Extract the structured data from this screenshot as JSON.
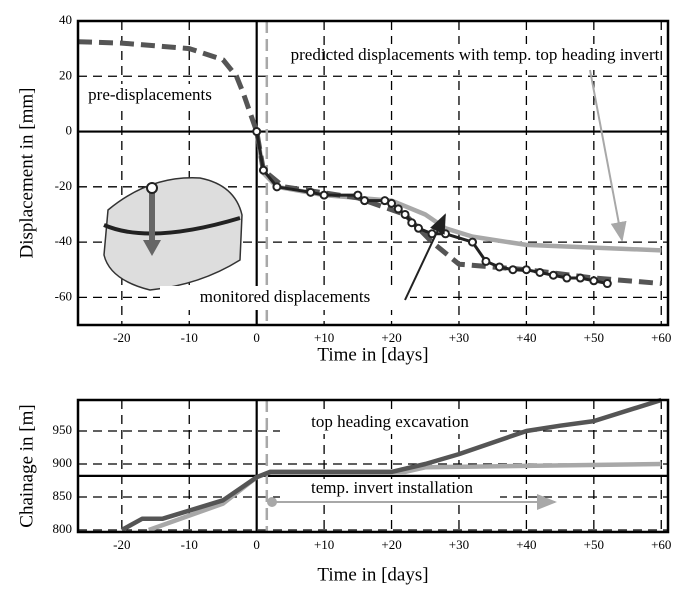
{
  "chart_data": [
    {
      "type": "line",
      "xlabel": "Time in [days]",
      "ylabel": "Displacement in [mm]",
      "xlim": [
        -26.5,
        61
      ],
      "ylim": [
        -70,
        40
      ],
      "xticks": [
        {
          "value": -20,
          "label": "-20"
        },
        {
          "value": -10,
          "label": "-10"
        },
        0,
        {
          "value": 10,
          "label": "+10"
        },
        {
          "value": 20,
          "label": "+20"
        },
        {
          "value": 30,
          "label": "+30"
        },
        {
          "value": 40,
          "label": "+40"
        },
        {
          "value": 50,
          "label": "+50"
        },
        {
          "value": 60,
          "label": "+60"
        }
      ],
      "yticks": [
        -60,
        -40,
        -20,
        0,
        20,
        40
      ],
      "grid": true,
      "zero_lines": true,
      "invert_time": 1.5,
      "series": [
        {
          "name": "predicted displacements with temp. top heading invert",
          "color": "#a8a8a8",
          "dash": false,
          "markers": false,
          "x": [
            0,
            1,
            3,
            10,
            20,
            25,
            28,
            32,
            40,
            50,
            60
          ],
          "values": [
            0,
            -15,
            -20,
            -23,
            -25,
            -30,
            -35,
            -38,
            -41,
            -42,
            -43
          ]
        },
        {
          "name": "pre-displacements",
          "color": "#555555",
          "dash": true,
          "markers": false,
          "x": [
            -26.5,
            -20,
            -10,
            -5,
            -3,
            -2,
            -1,
            0,
            1,
            4,
            15,
            22,
            26,
            30,
            40,
            50,
            60
          ],
          "values": [
            32.5,
            32,
            30,
            26,
            20,
            14,
            7,
            0,
            -14,
            -20,
            -24,
            -30,
            -40,
            -48,
            -50,
            -53,
            -55
          ]
        },
        {
          "name": "monitored displacements",
          "color": "#222222",
          "dash": false,
          "markers": true,
          "x": [
            0,
            1,
            3,
            8,
            10,
            15,
            16,
            19,
            20,
            21,
            22,
            23,
            24,
            26,
            28,
            32,
            34,
            36,
            38,
            40,
            42,
            44,
            46,
            48,
            50,
            52
          ],
          "values": [
            0,
            -14,
            -20,
            -22,
            -23,
            -23,
            -25,
            -25,
            -26,
            -28,
            -30,
            -33,
            -35,
            -37,
            -37,
            -40,
            -47,
            -49,
            -50,
            -50,
            -51,
            -52,
            -53,
            -53,
            -54,
            -55
          ]
        }
      ]
    },
    {
      "type": "line",
      "xlabel": "Time in [days]",
      "ylabel": "Chainage in [m]",
      "xlim": [
        -26.5,
        61
      ],
      "ylim": [
        797,
        997
      ],
      "xticks": [
        {
          "value": -20,
          "label": "-20"
        },
        {
          "value": -10,
          "label": "-10"
        },
        0,
        {
          "value": 10,
          "label": "+10"
        },
        {
          "value": 20,
          "label": "+20"
        },
        {
          "value": 30,
          "label": "+30"
        },
        {
          "value": 40,
          "label": "+40"
        },
        {
          "value": 50,
          "label": "+50"
        },
        {
          "value": 60,
          "label": "+60"
        }
      ],
      "yticks": [
        800,
        850,
        900,
        950
      ],
      "grid": true,
      "zero_lines": false,
      "ref_chainage": 882,
      "invert_time": 1.5,
      "series": [
        {
          "name": "temp. invert installation",
          "color": "#a8a8a8",
          "dash": false,
          "markers": false,
          "x": [
            -16,
            -5,
            0,
            2,
            22,
            25,
            60
          ],
          "values": [
            800,
            840,
            880,
            888,
            888,
            895,
            900
          ]
        },
        {
          "name": "top heading excavation",
          "color": "#555555",
          "dash": false,
          "markers": false,
          "x": [
            -20,
            -17,
            -14,
            -5,
            0,
            2,
            20,
            25,
            30,
            40,
            45,
            50,
            60
          ],
          "values": [
            800,
            817,
            817,
            845,
            880,
            888,
            888,
            900,
            915,
            950,
            958,
            965,
            997
          ]
        }
      ]
    }
  ]
}
